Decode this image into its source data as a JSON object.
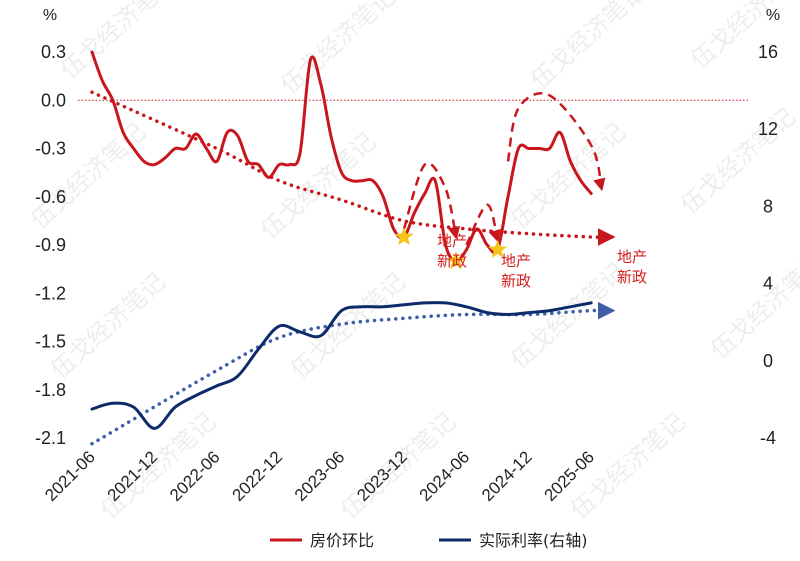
{
  "watermark": "伍戈经济笔记",
  "colors": {
    "house": "#c8161d",
    "rate": "#0d2a6b",
    "rate_trend": "#3e5fa8",
    "star": "#f5c518",
    "annotation": "#d42020"
  },
  "annotations": [
    {
      "line1": "地产",
      "line2": "新政",
      "x": "2023-12"
    },
    {
      "line1": "地产",
      "line2": "新政",
      "x": "2024-05"
    },
    {
      "line1": "地产",
      "line2": "新政",
      "x": "2024-09"
    }
  ],
  "legend": [
    {
      "label": "房价环比",
      "color": "#c8161d"
    },
    {
      "label": "实际利率(右轴)",
      "color": "#0d2a6b"
    }
  ],
  "chart_data": {
    "type": "line",
    "x_ticks": [
      "2021-06",
      "2021-12",
      "2022-06",
      "2022-12",
      "2023-06",
      "2023-12",
      "2024-06",
      "2024-12",
      "2025-06"
    ],
    "left_axis": {
      "unit": "%",
      "range": [
        -2.1,
        0.3
      ],
      "ticks": [
        "0.3",
        "0.0",
        "-0.3",
        "-0.6",
        "-0.9",
        "-1.2",
        "-1.5",
        "-1.8",
        "-2.1"
      ]
    },
    "right_axis": {
      "unit": "%",
      "range": [
        -4,
        16
      ],
      "ticks": [
        "16",
        "12",
        "8",
        "4",
        "0",
        "-4"
      ]
    },
    "series": [
      {
        "name": "房价环比",
        "axis": "left",
        "color": "#c8161d",
        "points": [
          [
            "2021-06",
            0.3
          ],
          [
            "2021-07",
            0.12
          ],
          [
            "2021-08",
            0.0
          ],
          [
            "2021-09",
            -0.2
          ],
          [
            "2021-10",
            -0.3
          ],
          [
            "2021-11",
            -0.38
          ],
          [
            "2021-12",
            -0.4
          ],
          [
            "2022-01",
            -0.36
          ],
          [
            "2022-02",
            -0.3
          ],
          [
            "2022-03",
            -0.3
          ],
          [
            "2022-04",
            -0.21
          ],
          [
            "2022-05",
            -0.3
          ],
          [
            "2022-06",
            -0.38
          ],
          [
            "2022-07",
            -0.2
          ],
          [
            "2022-08",
            -0.22
          ],
          [
            "2022-09",
            -0.38
          ],
          [
            "2022-10",
            -0.4
          ],
          [
            "2022-11",
            -0.48
          ],
          [
            "2022-12",
            -0.4
          ],
          [
            "2023-01",
            -0.4
          ],
          [
            "2023-02",
            -0.33
          ],
          [
            "2023-03",
            0.25
          ],
          [
            "2023-04",
            0.1
          ],
          [
            "2023-05",
            -0.23
          ],
          [
            "2023-06",
            -0.45
          ],
          [
            "2023-07",
            -0.5
          ],
          [
            "2023-08",
            -0.5
          ],
          [
            "2023-09",
            -0.5
          ],
          [
            "2023-10",
            -0.6
          ],
          [
            "2023-11",
            -0.8
          ],
          [
            "2023-12",
            -0.85
          ],
          [
            "2024-01",
            -0.7
          ],
          [
            "2024-02",
            -0.58
          ],
          [
            "2024-03",
            -0.5
          ],
          [
            "2024-04",
            -0.9
          ],
          [
            "2024-05",
            -1.0
          ],
          [
            "2024-06",
            -0.93
          ],
          [
            "2024-07",
            -0.8
          ],
          [
            "2024-08",
            -0.9
          ],
          [
            "2024-09",
            -0.93
          ],
          [
            "2024-10",
            -0.6
          ],
          [
            "2024-11",
            -0.3
          ],
          [
            "2024-12",
            -0.3
          ],
          [
            "2025-01",
            -0.3
          ],
          [
            "2025-02",
            -0.3
          ],
          [
            "2025-03",
            -0.2
          ],
          [
            "2025-04",
            -0.38
          ],
          [
            "2025-05",
            -0.5
          ],
          [
            "2025-06",
            -0.58
          ]
        ]
      },
      {
        "name": "实际利率(右轴)",
        "axis": "right",
        "color": "#0d2a6b",
        "points": [
          [
            "2021-06",
            -2.5
          ],
          [
            "2021-08",
            -2.2
          ],
          [
            "2021-10",
            -2.4
          ],
          [
            "2021-12",
            -3.5
          ],
          [
            "2022-02",
            -2.4
          ],
          [
            "2022-04",
            -1.8
          ],
          [
            "2022-06",
            -1.3
          ],
          [
            "2022-08",
            -0.8
          ],
          [
            "2022-10",
            0.6
          ],
          [
            "2022-12",
            1.8
          ],
          [
            "2023-02",
            1.5
          ],
          [
            "2023-04",
            1.3
          ],
          [
            "2023-06",
            2.6
          ],
          [
            "2023-08",
            2.8
          ],
          [
            "2023-10",
            2.8
          ],
          [
            "2023-12",
            2.9
          ],
          [
            "2024-02",
            3.0
          ],
          [
            "2024-04",
            3.0
          ],
          [
            "2024-06",
            2.8
          ],
          [
            "2024-08",
            2.5
          ],
          [
            "2024-10",
            2.4
          ],
          [
            "2024-12",
            2.5
          ],
          [
            "2025-02",
            2.6
          ],
          [
            "2025-04",
            2.8
          ],
          [
            "2025-06",
            3.0
          ]
        ]
      }
    ],
    "trend_lines": [
      {
        "of": "房价环比",
        "axis": "left",
        "style": "dotted",
        "points": [
          [
            "2021-06",
            0.05
          ],
          [
            "2022-06",
            -0.3
          ],
          [
            "2022-12",
            -0.5
          ],
          [
            "2023-06",
            -0.62
          ],
          [
            "2023-12",
            -0.75
          ],
          [
            "2024-06",
            -0.8
          ],
          [
            "2024-12",
            -0.83
          ],
          [
            "2025-06",
            -0.85
          ],
          [
            "2025-08",
            -0.85
          ]
        ]
      },
      {
        "of": "实际利率(右轴)",
        "axis": "right",
        "style": "dotted",
        "points": [
          [
            "2021-06",
            -4.3
          ],
          [
            "2022-06",
            -0.5
          ],
          [
            "2022-12",
            1.2
          ],
          [
            "2023-06",
            1.9
          ],
          [
            "2023-12",
            2.2
          ],
          [
            "2024-06",
            2.4
          ],
          [
            "2024-12",
            2.4
          ],
          [
            "2025-06",
            2.6
          ],
          [
            "2025-08",
            2.6
          ]
        ]
      }
    ],
    "projection_arrows": [
      {
        "axis": "left",
        "style": "dashed",
        "points": [
          [
            "2023-12",
            -0.8
          ],
          [
            "2024-02",
            -0.4
          ],
          [
            "2024-04",
            -0.55
          ],
          [
            "2024-05",
            -0.85
          ]
        ]
      },
      {
        "axis": "left",
        "style": "dashed",
        "points": [
          [
            "2024-06",
            -0.9
          ],
          [
            "2024-08",
            -0.65
          ],
          [
            "2024-09",
            -0.87
          ]
        ]
      },
      {
        "axis": "left",
        "style": "dashed",
        "points": [
          [
            "2024-10",
            -0.38
          ],
          [
            "2024-11",
            -0.05
          ],
          [
            "2025-02",
            0.03
          ],
          [
            "2025-06",
            -0.28
          ],
          [
            "2025-07",
            -0.55
          ]
        ]
      }
    ],
    "markers": [
      {
        "type": "star",
        "x": "2023-12",
        "y": -0.85,
        "axis": "left"
      },
      {
        "type": "star",
        "x": "2024-05",
        "y": -1.0,
        "axis": "left"
      },
      {
        "type": "star",
        "x": "2024-09",
        "y": -0.93,
        "axis": "left"
      }
    ],
    "reference_line": {
      "axis": "left",
      "y": 0.0,
      "style": "dotted"
    },
    "legend_position": "bottom",
    "grid": false
  }
}
